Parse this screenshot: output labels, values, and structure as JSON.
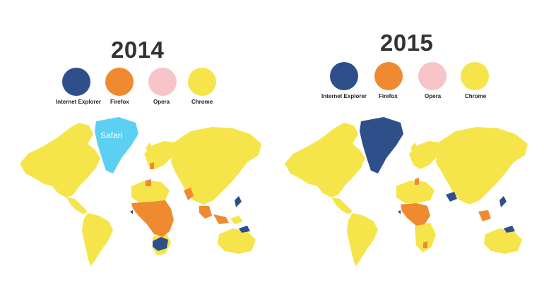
{
  "maps": [
    {
      "year": "2014",
      "legend": [
        {
          "label": "Internet Explorer",
          "color": "#2f4f8a"
        },
        {
          "label": "Firefox",
          "color": "#f08a30"
        },
        {
          "label": "Opera",
          "color": "#f7c4c8"
        },
        {
          "label": "Chrome",
          "color": "#f5e44a"
        }
      ],
      "greenland": {
        "browser": "Safari",
        "color": "#5cd0f2",
        "label": "Safari"
      },
      "regions": {
        "chrome": "#f5e44a",
        "firefox": "#f08a30",
        "ie": "#2f4f8a"
      }
    },
    {
      "year": "2015",
      "legend": [
        {
          "label": "Internet Explorer",
          "color": "#2f4f8a"
        },
        {
          "label": "Firefox",
          "color": "#f08a30"
        },
        {
          "label": "Opera",
          "color": "#f7c4c8"
        },
        {
          "label": "Chrome",
          "color": "#f5e44a"
        }
      ],
      "greenland": {
        "browser": "Internet Explorer",
        "color": "#2f4f8a"
      },
      "regions": {
        "chrome": "#f5e44a",
        "firefox": "#f08a30",
        "ie": "#2f4f8a"
      }
    }
  ]
}
